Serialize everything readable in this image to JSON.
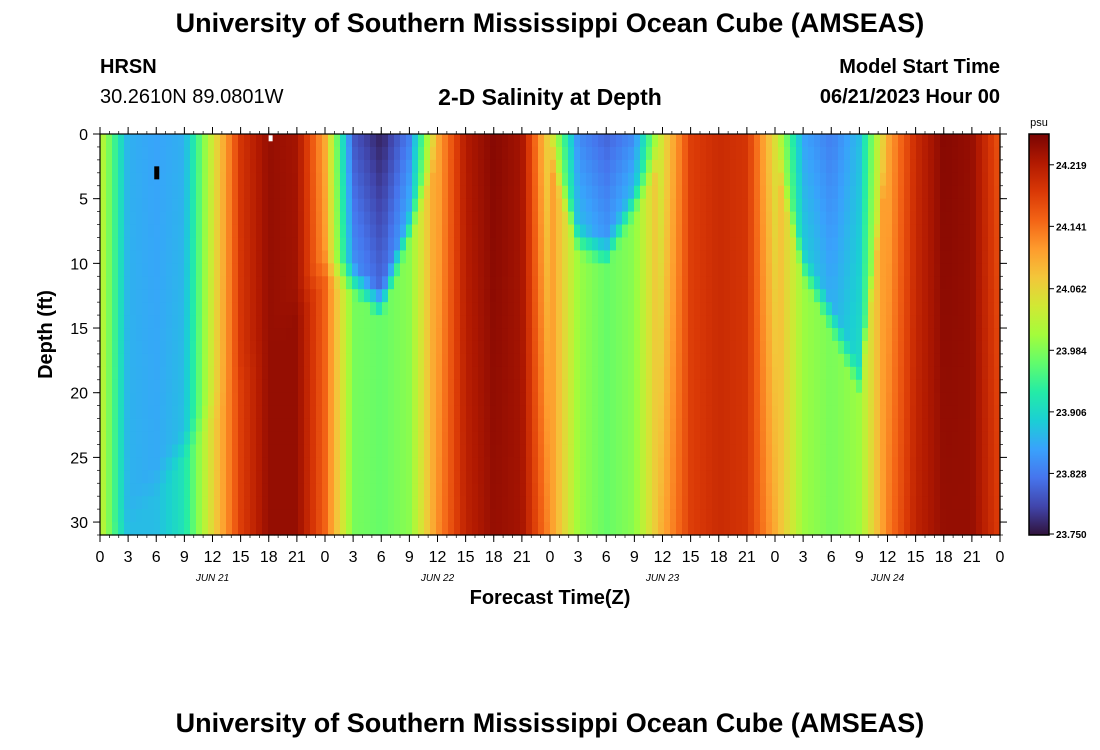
{
  "page": {
    "title_top": "University of Southern Mississippi Ocean Cube (AMSEAS)",
    "title_bottom": "University of Southern Mississippi Ocean Cube (AMSEAS)",
    "station_name": "HRSN",
    "station_coords": "30.2610N  89.0801W",
    "plot_title": "2-D Salinity at Depth",
    "model_label": "Model Start Time",
    "model_time": "06/21/2023 Hour 00"
  },
  "chart_data": {
    "type": "heatmap",
    "title": "2-D Salinity at Depth",
    "xlabel": "Forecast Time(Z)",
    "ylabel": "Depth (ft)",
    "x_range_hours": [
      0,
      96
    ],
    "ylim": [
      0,
      31
    ],
    "y_inverted": true,
    "x_tick_labels": [
      "0",
      "3",
      "6",
      "9",
      "12",
      "15",
      "18",
      "21",
      "0",
      "3",
      "6",
      "9",
      "12",
      "15",
      "18",
      "21",
      "0",
      "3",
      "6",
      "9",
      "12",
      "15",
      "18",
      "21",
      "0",
      "3",
      "6",
      "9",
      "12",
      "15",
      "18",
      "21",
      "0"
    ],
    "y_ticks": [
      0,
      5,
      10,
      15,
      20,
      25,
      30
    ],
    "day_labels": [
      {
        "label": "JUN 21",
        "hour": 12
      },
      {
        "label": "JUN 22",
        "hour": 36
      },
      {
        "label": "JUN 23",
        "hour": 60
      },
      {
        "label": "JUN 24",
        "hour": 84
      }
    ],
    "colorbar": {
      "unit": "psu",
      "min": 23.75,
      "max": 24.258,
      "labels": [
        "24.219",
        "24.141",
        "24.062",
        "23.984",
        "23.906",
        "23.828",
        "23.750"
      ],
      "colors": [
        "#30123b",
        "#4145ab",
        "#4675ed",
        "#39a2fc",
        "#1bcfd4",
        "#24eca6",
        "#61fc6c",
        "#a4fc3b",
        "#d1e834",
        "#f3c63a",
        "#fe9b2d",
        "#f36315",
        "#d93806",
        "#b11901",
        "#7a0403"
      ]
    },
    "surface_salinity_by_hour": [
      {
        "hour": 0,
        "value": 24.03
      },
      {
        "hour": 3,
        "value": 23.87
      },
      {
        "hour": 6,
        "value": 23.86
      },
      {
        "hour": 9,
        "value": 23.87
      },
      {
        "hour": 12,
        "value": 24.04
      },
      {
        "hour": 15,
        "value": 24.19
      },
      {
        "hour": 18,
        "value": 24.24
      },
      {
        "hour": 21,
        "value": 24.23
      },
      {
        "hour": 24,
        "value": 24.1
      },
      {
        "hour": 27,
        "value": 23.8
      },
      {
        "hour": 30,
        "value": 23.76
      },
      {
        "hour": 33,
        "value": 23.83
      },
      {
        "hour": 36,
        "value": 24.1
      },
      {
        "hour": 39,
        "value": 24.22
      },
      {
        "hour": 42,
        "value": 24.25
      },
      {
        "hour": 45,
        "value": 24.23
      },
      {
        "hour": 48,
        "value": 24.05
      },
      {
        "hour": 51,
        "value": 23.84
      },
      {
        "hour": 54,
        "value": 23.81
      },
      {
        "hour": 57,
        "value": 23.84
      },
      {
        "hour": 60,
        "value": 24.05
      },
      {
        "hour": 63,
        "value": 24.18
      },
      {
        "hour": 66,
        "value": 24.2
      },
      {
        "hour": 69,
        "value": 24.19
      },
      {
        "hour": 72,
        "value": 24.05
      },
      {
        "hour": 75,
        "value": 23.86
      },
      {
        "hour": 78,
        "value": 23.83
      },
      {
        "hour": 81,
        "value": 23.88
      },
      {
        "hour": 84,
        "value": 24.1
      },
      {
        "hour": 87,
        "value": 24.2
      },
      {
        "hour": 90,
        "value": 24.25
      },
      {
        "hour": 93,
        "value": 24.24
      },
      {
        "hour": 96,
        "value": 24.16
      }
    ],
    "bottom_salinity_by_hour": [
      {
        "hour": 0,
        "value": 24.04
      },
      {
        "hour": 3,
        "value": 23.88
      },
      {
        "hour": 6,
        "value": 23.88
      },
      {
        "hour": 9,
        "value": 23.92
      },
      {
        "hour": 12,
        "value": 24.06
      },
      {
        "hour": 15,
        "value": 24.18
      },
      {
        "hour": 18,
        "value": 24.24
      },
      {
        "hour": 21,
        "value": 24.24
      },
      {
        "hour": 24,
        "value": 24.15
      },
      {
        "hour": 27,
        "value": 23.98
      },
      {
        "hour": 30,
        "value": 23.97
      },
      {
        "hour": 33,
        "value": 23.99
      },
      {
        "hour": 36,
        "value": 24.12
      },
      {
        "hour": 39,
        "value": 24.21
      },
      {
        "hour": 42,
        "value": 24.24
      },
      {
        "hour": 45,
        "value": 24.23
      },
      {
        "hour": 48,
        "value": 24.12
      },
      {
        "hour": 51,
        "value": 24.0
      },
      {
        "hour": 54,
        "value": 23.97
      },
      {
        "hour": 57,
        "value": 23.99
      },
      {
        "hour": 60,
        "value": 24.1
      },
      {
        "hour": 63,
        "value": 24.18
      },
      {
        "hour": 66,
        "value": 24.2
      },
      {
        "hour": 69,
        "value": 24.19
      },
      {
        "hour": 72,
        "value": 24.1
      },
      {
        "hour": 75,
        "value": 24.0
      },
      {
        "hour": 78,
        "value": 23.98
      },
      {
        "hour": 81,
        "value": 24.0
      },
      {
        "hour": 84,
        "value": 24.13
      },
      {
        "hour": 87,
        "value": 24.21
      },
      {
        "hour": 90,
        "value": 24.24
      },
      {
        "hour": 93,
        "value": 24.24
      },
      {
        "hour": 96,
        "value": 24.18
      }
    ],
    "fresh_lens_depth_by_hour": [
      {
        "hour": 0,
        "value": 31
      },
      {
        "hour": 24,
        "value": 9
      },
      {
        "hour": 27,
        "value": 10
      },
      {
        "hour": 30,
        "value": 12
      },
      {
        "hour": 36,
        "value": 0
      },
      {
        "hour": 48,
        "value": 0
      },
      {
        "hour": 51,
        "value": 7
      },
      {
        "hour": 54,
        "value": 8
      },
      {
        "hour": 60,
        "value": 0
      },
      {
        "hour": 72,
        "value": 0
      },
      {
        "hour": 75,
        "value": 9
      },
      {
        "hour": 78,
        "value": 13
      },
      {
        "hour": 81,
        "value": 18
      },
      {
        "hour": 84,
        "value": 0
      },
      {
        "hour": 96,
        "value": 0
      }
    ]
  }
}
